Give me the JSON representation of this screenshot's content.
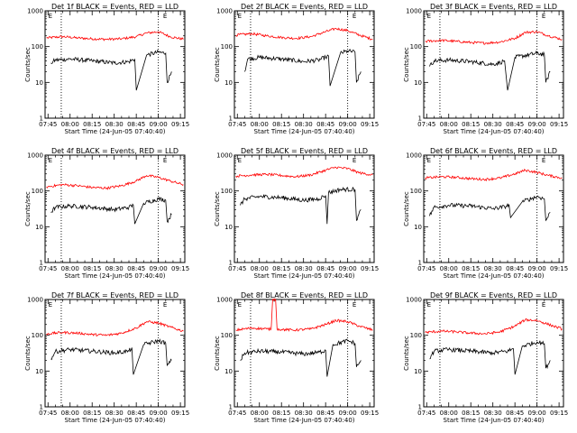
{
  "figure": {
    "xlabel": "Start Time (24-Jun-05 07:40:40)",
    "ylabel": "Counts/sec",
    "x_ticks": [
      "07:45",
      "08:00",
      "08:15",
      "08:30",
      "08:45",
      "09:00",
      "09:15"
    ],
    "y_ticks": [
      "1",
      "10",
      "100",
      "1000"
    ],
    "marker_labels": [
      "E",
      "E"
    ],
    "colors": {
      "events": "#000000",
      "lld": "#ff0000",
      "axes": "#000000",
      "background": "#ffffff"
    }
  },
  "chart_data": [
    {
      "type": "line",
      "title": "Det 1f BLACK = Events, RED = LLD",
      "x_range": [
        "07:43",
        "09:18"
      ],
      "y_scale": "log",
      "ylim": [
        1,
        1000
      ],
      "dotted_lines_x": [
        "07:54",
        "09:00"
      ],
      "marker_labels_x": [
        "07:44",
        "09:02"
      ],
      "series": [
        {
          "name": "LLD",
          "color": "#ff0000",
          "x": [
            "07:44",
            "07:55",
            "08:05",
            "08:15",
            "08:25",
            "08:35",
            "08:45",
            "08:52",
            "09:00",
            "09:08",
            "09:17"
          ],
          "y": [
            175,
            190,
            175,
            165,
            160,
            165,
            190,
            240,
            260,
            190,
            160
          ]
        },
        {
          "name": "Events",
          "color": "#000000",
          "x": [
            "07:47",
            "07:50",
            "08:00",
            "08:15",
            "08:30",
            "08:40",
            "08:44",
            "08:45",
            "08:52",
            "09:00",
            "09:05",
            "09:06",
            "09:09"
          ],
          "y": [
            35,
            42,
            45,
            40,
            35,
            38,
            45,
            6,
            58,
            70,
            65,
            10,
            20
          ]
        }
      ]
    },
    {
      "type": "line",
      "title": "Det 2f BLACK = Events, RED = LLD",
      "x_range": [
        "07:43",
        "09:18"
      ],
      "y_scale": "log",
      "ylim": [
        1,
        1000
      ],
      "dotted_lines_x": [
        "07:54",
        "09:00"
      ],
      "marker_labels_x": [
        "07:44",
        "09:02"
      ],
      "series": [
        {
          "name": "LLD",
          "color": "#ff0000",
          "x": [
            "07:44",
            "07:55",
            "08:05",
            "08:15",
            "08:25",
            "08:35",
            "08:45",
            "08:52",
            "09:00",
            "09:08",
            "09:17"
          ],
          "y": [
            210,
            230,
            200,
            180,
            170,
            190,
            260,
            320,
            280,
            210,
            160
          ]
        },
        {
          "name": "Events",
          "color": "#000000",
          "x": [
            "07:50",
            "07:52",
            "08:00",
            "08:15",
            "08:30",
            "08:40",
            "08:45",
            "08:47",
            "08:48",
            "08:55",
            "09:00",
            "09:05",
            "09:06",
            "09:09"
          ],
          "y": [
            20,
            45,
            50,
            45,
            38,
            42,
            50,
            55,
            8,
            65,
            75,
            70,
            10,
            20
          ]
        }
      ]
    },
    {
      "type": "line",
      "title": "Det 3f BLACK = Events, RED = LLD",
      "x_range": [
        "07:43",
        "09:18"
      ],
      "y_scale": "log",
      "ylim": [
        1,
        1000
      ],
      "dotted_lines_x": [
        "07:54",
        "09:00"
      ],
      "marker_labels_x": [
        "07:44",
        "09:02"
      ],
      "series": [
        {
          "name": "LLD",
          "color": "#ff0000",
          "x": [
            "07:44",
            "07:55",
            "08:05",
            "08:15",
            "08:25",
            "08:35",
            "08:45",
            "08:52",
            "09:00",
            "09:08",
            "09:17"
          ],
          "y": [
            140,
            150,
            140,
            130,
            125,
            135,
            170,
            250,
            260,
            200,
            160
          ]
        },
        {
          "name": "Events",
          "color": "#000000",
          "x": [
            "07:47",
            "07:50",
            "08:00",
            "08:15",
            "08:30",
            "08:35",
            "08:38",
            "08:40",
            "08:45",
            "09:00",
            "09:05",
            "09:06",
            "09:09"
          ],
          "y": [
            28,
            40,
            42,
            38,
            32,
            36,
            40,
            6,
            50,
            65,
            60,
            10,
            20
          ]
        }
      ]
    },
    {
      "type": "line",
      "title": "Det 4f BLACK = Events, RED = LLD",
      "x_range": [
        "07:43",
        "09:18"
      ],
      "y_scale": "log",
      "ylim": [
        1,
        1000
      ],
      "dotted_lines_x": [
        "07:54",
        "09:00"
      ],
      "marker_labels_x": [
        "07:44",
        "09:02"
      ],
      "series": [
        {
          "name": "LLD",
          "color": "#ff0000",
          "x": [
            "07:44",
            "07:55",
            "08:05",
            "08:15",
            "08:25",
            "08:35",
            "08:45",
            "08:52",
            "09:00",
            "09:08",
            "09:17"
          ],
          "y": [
            130,
            150,
            140,
            125,
            120,
            140,
            190,
            270,
            240,
            190,
            150
          ]
        },
        {
          "name": "Events",
          "color": "#000000",
          "x": [
            "07:47",
            "07:50",
            "08:00",
            "08:15",
            "08:30",
            "08:40",
            "08:43",
            "08:44",
            "08:50",
            "09:00",
            "09:05",
            "09:06",
            "09:09"
          ],
          "y": [
            25,
            35,
            38,
            35,
            30,
            35,
            40,
            12,
            45,
            60,
            55,
            14,
            22
          ]
        }
      ]
    },
    {
      "type": "line",
      "title": "Det 5f BLACK = Events, RED = LLD",
      "x_range": [
        "07:43",
        "09:18"
      ],
      "y_scale": "log",
      "ylim": [
        1,
        1000
      ],
      "dotted_lines_x": [],
      "marker_labels_x": [
        "07:44",
        "09:02"
      ],
      "series": [
        {
          "name": "LLD",
          "color": "#ff0000",
          "x": [
            "07:44",
            "07:55",
            "08:05",
            "08:15",
            "08:25",
            "08:35",
            "08:45",
            "08:52",
            "09:00",
            "09:08",
            "09:17"
          ],
          "y": [
            260,
            280,
            290,
            270,
            250,
            280,
            380,
            460,
            420,
            320,
            280
          ]
        },
        {
          "name": "Events",
          "color": "#000000",
          "x": [
            "07:47",
            "07:50",
            "08:00",
            "08:15",
            "08:30",
            "08:40",
            "08:45",
            "08:46",
            "08:47",
            "08:55",
            "09:05",
            "09:06",
            "09:09"
          ],
          "y": [
            40,
            60,
            70,
            65,
            55,
            60,
            75,
            12,
            90,
            110,
            110,
            15,
            30
          ]
        }
      ]
    },
    {
      "type": "line",
      "title": "Det 6f BLACK = Events, RED = LLD",
      "x_range": [
        "07:43",
        "09:18"
      ],
      "y_scale": "log",
      "ylim": [
        1,
        1000
      ],
      "dotted_lines_x": [
        "07:54",
        "09:00"
      ],
      "marker_labels_x": [
        "07:44",
        "09:02"
      ],
      "series": [
        {
          "name": "LLD",
          "color": "#ff0000",
          "x": [
            "07:44",
            "07:55",
            "08:05",
            "08:15",
            "08:25",
            "08:35",
            "08:45",
            "08:52",
            "09:00",
            "09:08",
            "09:17"
          ],
          "y": [
            230,
            250,
            240,
            220,
            210,
            230,
            300,
            380,
            330,
            270,
            230
          ]
        },
        {
          "name": "Events",
          "color": "#000000",
          "x": [
            "07:47",
            "07:50",
            "08:00",
            "08:15",
            "08:30",
            "08:38",
            "08:41",
            "08:42",
            "08:50",
            "09:00",
            "09:05",
            "09:06",
            "09:09"
          ],
          "y": [
            20,
            35,
            40,
            38,
            32,
            36,
            42,
            18,
            50,
            70,
            60,
            15,
            25
          ]
        }
      ]
    },
    {
      "type": "line",
      "title": "Det 7f BLACK = Events, RED = LLD",
      "x_range": [
        "07:43",
        "09:18"
      ],
      "y_scale": "log",
      "ylim": [
        1,
        1000
      ],
      "dotted_lines_x": [
        "07:54",
        "09:00"
      ],
      "marker_labels_x": [
        "07:44",
        "09:02"
      ],
      "series": [
        {
          "name": "LLD",
          "color": "#ff0000",
          "x": [
            "07:44",
            "07:55",
            "08:05",
            "08:15",
            "08:25",
            "08:35",
            "08:45",
            "08:52",
            "09:00",
            "09:08",
            "09:17"
          ],
          "y": [
            110,
            120,
            115,
            105,
            100,
            115,
            160,
            240,
            220,
            170,
            130
          ]
        },
        {
          "name": "Events",
          "color": "#000000",
          "x": [
            "07:47",
            "07:50",
            "08:00",
            "08:15",
            "08:30",
            "08:40",
            "08:42",
            "08:43",
            "08:50",
            "09:00",
            "09:05",
            "09:06",
            "09:09"
          ],
          "y": [
            22,
            35,
            40,
            36,
            32,
            36,
            45,
            8,
            55,
            70,
            60,
            14,
            20
          ]
        }
      ]
    },
    {
      "type": "line",
      "title": "Det 8f BLACK = Events, RED = LLD",
      "x_range": [
        "07:43",
        "09:18"
      ],
      "y_scale": "log",
      "ylim": [
        1,
        1000
      ],
      "dotted_lines_x": [
        "07:54",
        "09:00"
      ],
      "marker_labels_x": [
        "07:44",
        "09:02"
      ],
      "series": [
        {
          "name": "LLD",
          "color": "#ff0000",
          "x": [
            "07:44",
            "07:55",
            "08:05",
            "08:08",
            "08:09",
            "08:11",
            "08:12",
            "08:15",
            "08:25",
            "08:35",
            "08:45",
            "08:52",
            "09:00",
            "09:08",
            "09:17"
          ],
          "y": [
            140,
            160,
            150,
            150,
            1000,
            1000,
            150,
            145,
            140,
            150,
            200,
            260,
            240,
            180,
            140
          ]
        },
        {
          "name": "Events",
          "color": "#000000",
          "x": [
            "07:47",
            "07:50",
            "08:00",
            "08:15",
            "08:30",
            "08:40",
            "08:45",
            "08:46",
            "08:50",
            "09:00",
            "09:05",
            "09:06",
            "09:09"
          ],
          "y": [
            20,
            32,
            36,
            34,
            30,
            33,
            38,
            7,
            55,
            70,
            60,
            13,
            20
          ]
        }
      ]
    },
    {
      "type": "line",
      "title": "Det 9f BLACK = Events, RED = LLD",
      "x_range": [
        "07:43",
        "09:18"
      ],
      "y_scale": "log",
      "ylim": [
        1,
        1000
      ],
      "dotted_lines_x": [
        "07:54",
        "09:00"
      ],
      "marker_labels_x": [
        "07:44",
        "09:02"
      ],
      "series": [
        {
          "name": "LLD",
          "color": "#ff0000",
          "x": [
            "07:44",
            "07:55",
            "08:05",
            "08:15",
            "08:25",
            "08:35",
            "08:45",
            "08:52",
            "09:00",
            "09:08",
            "09:17"
          ],
          "y": [
            120,
            130,
            125,
            115,
            110,
            125,
            180,
            270,
            260,
            200,
            150
          ]
        },
        {
          "name": "Events",
          "color": "#000000",
          "x": [
            "07:47",
            "07:50",
            "08:00",
            "08:15",
            "08:30",
            "08:40",
            "08:44",
            "08:45",
            "08:50",
            "09:00",
            "09:05",
            "09:06",
            "09:09"
          ],
          "y": [
            22,
            36,
            40,
            36,
            32,
            36,
            42,
            8,
            50,
            65,
            58,
            12,
            20
          ]
        }
      ]
    }
  ]
}
